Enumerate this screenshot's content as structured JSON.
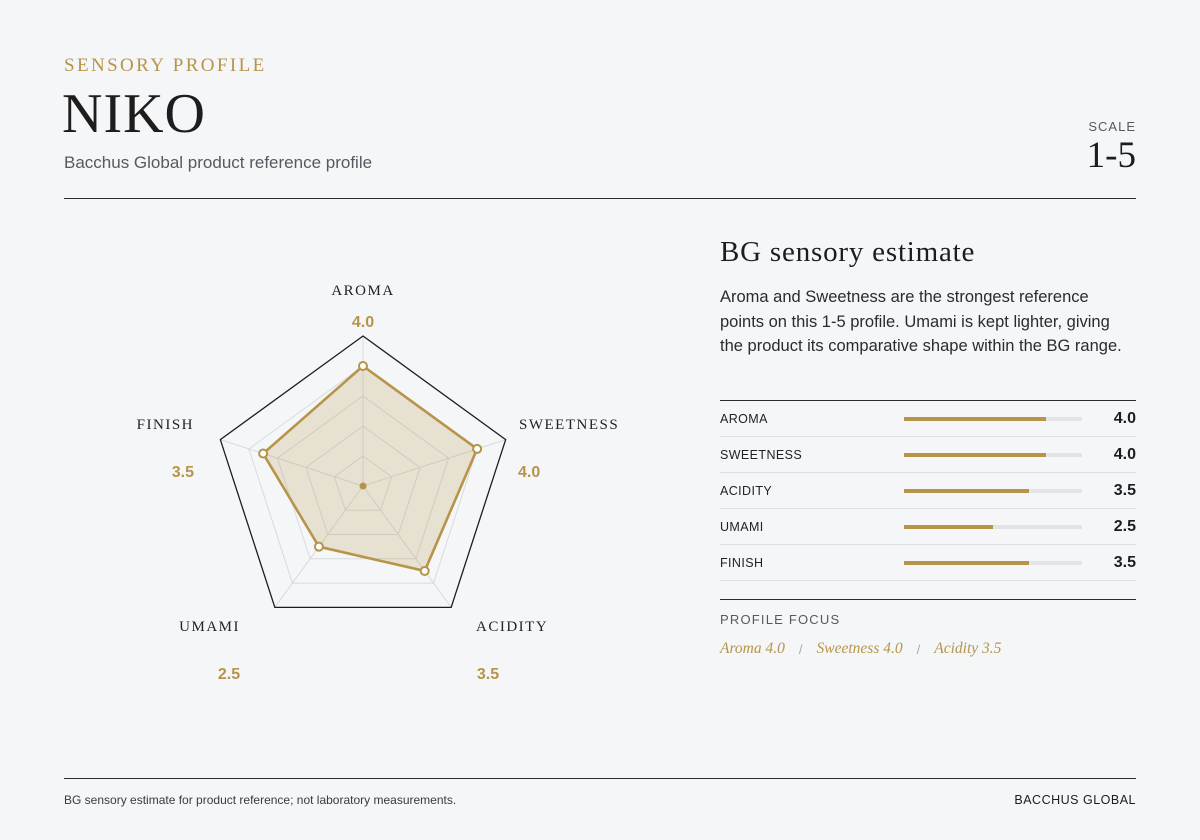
{
  "header": {
    "eyebrow": "SENSORY PROFILE",
    "title": "NIKO",
    "subtitle": "Bacchus Global product reference profile",
    "scale_label": "SCALE",
    "scale_value": "1-5"
  },
  "chart_data": {
    "type": "radar",
    "title": "",
    "axes": [
      "AROMA",
      "SWEETNESS",
      "ACIDITY",
      "UMAMI",
      "FINISH"
    ],
    "values": [
      4.0,
      4.0,
      3.5,
      2.5,
      3.5
    ],
    "value_labels": [
      "4.0",
      "4.0",
      "3.5",
      "2.5",
      "3.5"
    ],
    "range": [
      0,
      5
    ],
    "grid_levels": 5,
    "colors": {
      "accent": "#b8944a",
      "fill": "rgba(184,148,74,0.22)",
      "outline": "#1d1d1d",
      "grid": "#d8dbde"
    }
  },
  "panel": {
    "title": "BG sensory estimate",
    "description": "Aroma and Sweetness are the strongest reference points on this 1-5 profile. Umami is kept lighter, giving the product its comparative shape within the BG range.",
    "metrics": [
      {
        "name": "AROMA",
        "value": 4.0,
        "label": "4.0"
      },
      {
        "name": "SWEETNESS",
        "value": 4.0,
        "label": "4.0"
      },
      {
        "name": "ACIDITY",
        "value": 3.5,
        "label": "3.5"
      },
      {
        "name": "UMAMI",
        "value": 2.5,
        "label": "2.5"
      },
      {
        "name": "FINISH",
        "value": 3.5,
        "label": "3.5"
      }
    ],
    "metric_max": 5,
    "focus_label": "PROFILE FOCUS",
    "focus_items": [
      "Aroma 4.0",
      "Sweetness 4.0",
      "Acidity 3.5"
    ],
    "focus_separator": "/"
  },
  "footer": {
    "note": "BG sensory estimate for product reference; not laboratory measurements.",
    "brand": "BACCHUS GLOBAL"
  }
}
